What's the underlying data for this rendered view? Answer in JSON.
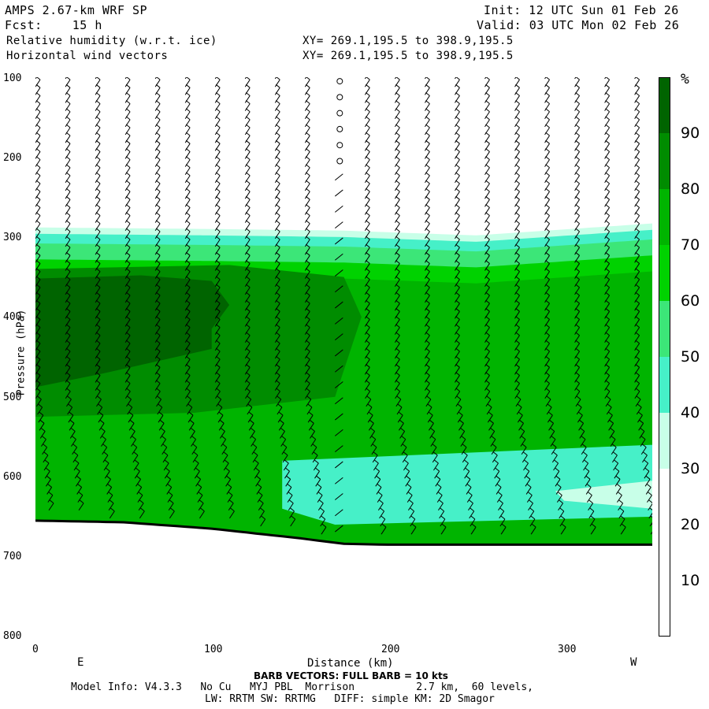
{
  "header": {
    "model": "AMPS 2.67-km WRF SP",
    "fcst": "Fcst:    15 h",
    "field1": "Relative humidity (w.r.t. ice)",
    "field2": "Horizontal wind vectors",
    "init": "Init: 12 UTC Sun 01 Feb 26",
    "valid": "Valid: 03 UTC Mon 02 Feb 26",
    "xy1": "XY= 269.1,195.5 to 398.9,195.5",
    "xy2": "XY= 269.1,195.5 to 398.9,195.5"
  },
  "axes": {
    "xlabel": "Distance (km)",
    "ylabel": "Pressure (hPa)",
    "left_dir": "E",
    "right_dir": "W",
    "yticks": [
      "100",
      "200",
      "300",
      "400",
      "500",
      "600",
      "700",
      "800"
    ],
    "xticks": [
      "0",
      "100",
      "200",
      "300"
    ]
  },
  "legend": {
    "unit": "%",
    "ticks": [
      "90",
      "80",
      "70",
      "60",
      "50",
      "40",
      "30",
      "20",
      "10"
    ],
    "colors": [
      "#ffffff",
      "#ffffff",
      "#ffffff",
      "#c8ffe8",
      "#46f0c8",
      "#3ce678",
      "#00d200",
      "#00b400",
      "#008c00",
      "#006400"
    ]
  },
  "footer": {
    "barb_note": "BARB VECTORS: FULL BARB = 10 kts",
    "model_info": "Model Info: V4.3.3   No Cu   MYJ PBL  Morrison          2.7 km,  60 levels,",
    "physics": "LW: RRTM SW: RRTMG   DIFF: simple KM: 2D Smagor"
  },
  "chart_data": {
    "type": "heatmap",
    "title": "Relative humidity (w.r.t. ice)",
    "xlabel": "Distance (km)",
    "ylabel": "Pressure (hPa)",
    "xlim": [
      0,
      350
    ],
    "ylim": [
      800,
      100
    ],
    "y_reversed": true,
    "grid": false,
    "legend": "right",
    "contour_levels": [
      10,
      20,
      30,
      40,
      50,
      60,
      70,
      80,
      90
    ],
    "terrain_pressure_hPa": {
      "x": [
        0,
        50,
        100,
        150,
        175,
        200,
        250,
        300,
        350
      ],
      "p": [
        655,
        657,
        665,
        677,
        684,
        685,
        685,
        685,
        685
      ]
    },
    "rh_cloud_top_pressure_hPa": {
      "x": [
        0,
        100,
        175,
        250,
        350
      ],
      "p": [
        288,
        290,
        292,
        298,
        283
      ]
    },
    "moist_core": {
      "rh_above_90_region": "x 0 to 110 km, 350 to 490 hPa",
      "rh_80_to_90": "x 0 to 175 km, 340 to 520 hPa"
    },
    "wind_barb_columns_km": [
      0,
      17,
      34,
      51,
      68,
      85,
      102,
      119,
      136,
      153,
      170,
      187,
      204,
      221,
      238,
      255,
      272,
      289,
      306,
      323,
      340
    ],
    "calm_column_km": 170
  }
}
